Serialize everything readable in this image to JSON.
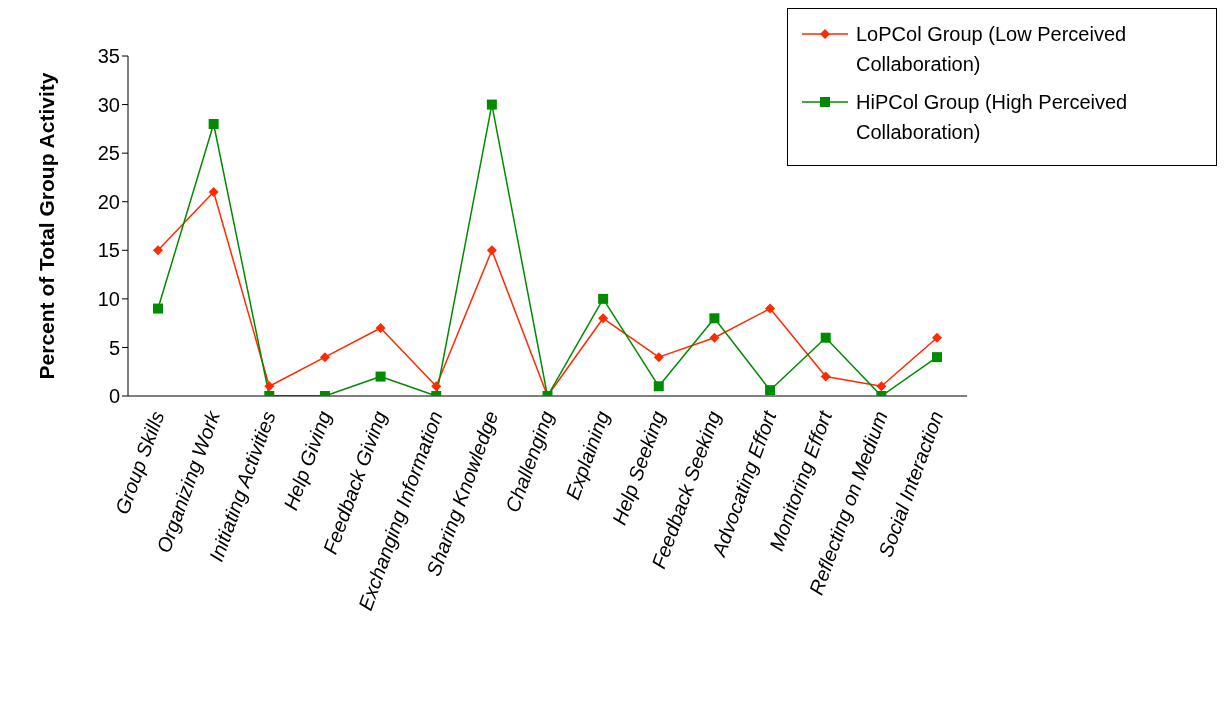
{
  "chart_data": {
    "type": "line",
    "categories": [
      "Group Skills",
      "Organizing Work",
      "Initiating Activities",
      "Help Giving",
      "Feedback Giving",
      "Exchanging Information",
      "Sharing Knowledge",
      "Challenging",
      "Explaining",
      "Help Seeking",
      "Feedback Seeking",
      "Advocating Effort",
      "Monitoring Effort",
      "Reflecting on Medium",
      "Social Interaction"
    ],
    "series": [
      {
        "name": "LoPCol Group (Low Perceived Collaboration)",
        "color": "#ff2a00",
        "marker": "diamond",
        "values": [
          15,
          21,
          1,
          4,
          7,
          1,
          15,
          0,
          8,
          4,
          6,
          9,
          2,
          1,
          6
        ]
      },
      {
        "name": "HiPCol Group (High Perceived Collaboration)",
        "color": "#008c00",
        "marker": "square",
        "values": [
          9,
          28,
          0,
          0,
          2,
          0,
          30,
          0,
          10,
          1,
          8,
          0.6,
          6,
          0,
          4
        ]
      }
    ],
    "ylabel": "Percent of Total Group Activity",
    "ylim": [
      0,
      35
    ],
    "yticks": [
      0,
      5,
      10,
      15,
      20,
      25,
      30,
      35
    ],
    "grid": false,
    "legend": "top right",
    "line_style": "solid"
  }
}
